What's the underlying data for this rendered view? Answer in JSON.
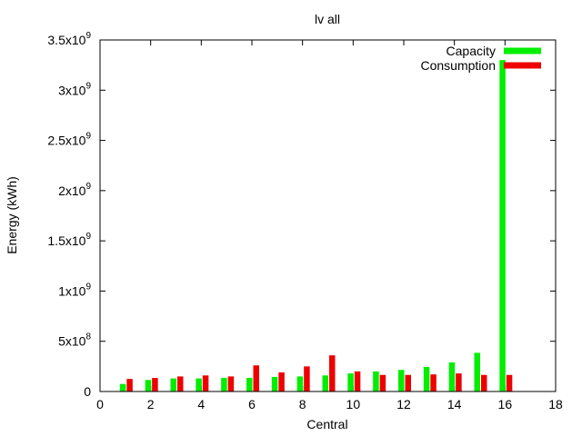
{
  "chart_data": {
    "type": "bar",
    "title": "lv all",
    "xlabel": "Central",
    "ylabel": "Energy (kWh)",
    "xlim": [
      0,
      18
    ],
    "ylim": [
      0,
      3500000000
    ],
    "x_ticks": [
      0,
      2,
      4,
      6,
      8,
      10,
      12,
      14,
      16,
      18
    ],
    "x_tick_labels": [
      "0",
      "2",
      "4",
      "6",
      "8",
      "10",
      "12",
      "14",
      "16",
      "18"
    ],
    "y_ticks": [
      0,
      500000000,
      1000000000,
      1500000000,
      2000000000,
      2500000000,
      3000000000,
      3500000000
    ],
    "y_tick_labels": [
      {
        "base": "0",
        "exp": ""
      },
      {
        "base": "5x10",
        "exp": "8"
      },
      {
        "base": "1x10",
        "exp": "9"
      },
      {
        "base": "1.5x10",
        "exp": "9"
      },
      {
        "base": "2x10",
        "exp": "9"
      },
      {
        "base": "2.5x10",
        "exp": "9"
      },
      {
        "base": "3x10",
        "exp": "9"
      },
      {
        "base": "3.5x10",
        "exp": "9"
      }
    ],
    "x": [
      1,
      2,
      3,
      4,
      5,
      6,
      7,
      8,
      9,
      10,
      11,
      12,
      13,
      14,
      15,
      16
    ],
    "series": [
      {
        "name": "Capacity",
        "color": "#00ee00",
        "values": [
          75000000,
          115000000,
          130000000,
          130000000,
          135000000,
          135000000,
          145000000,
          150000000,
          160000000,
          180000000,
          200000000,
          215000000,
          245000000,
          290000000,
          385000000,
          3300000000
        ]
      },
      {
        "name": "Consumption",
        "color": "#ee0000",
        "values": [
          125000000,
          135000000,
          150000000,
          160000000,
          150000000,
          260000000,
          190000000,
          250000000,
          360000000,
          200000000,
          165000000,
          165000000,
          170000000,
          180000000,
          165000000,
          165000000
        ]
      }
    ],
    "legend_position": "top-right",
    "grid": false
  }
}
